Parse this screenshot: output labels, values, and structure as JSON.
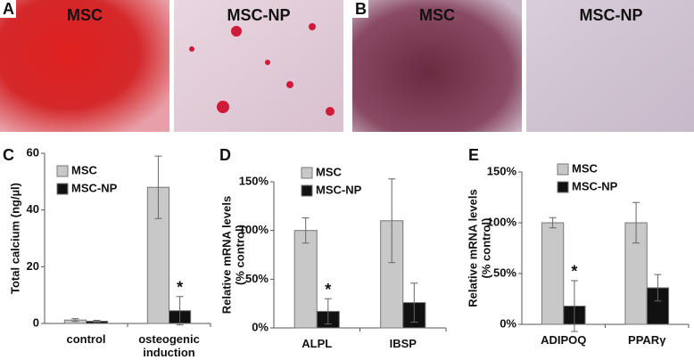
{
  "panels": [
    {
      "label": "A",
      "images": [
        "MSC",
        "MSC-NP"
      ]
    },
    {
      "label": "B",
      "images": [
        "MSC",
        "MSC-NP"
      ]
    }
  ],
  "chart_data": [
    {
      "type": "bar",
      "panel": "C",
      "ylabel": [
        "Total calcium (ng/µl)"
      ],
      "categories": [
        "control",
        "osteogenic induction"
      ],
      "series": [
        {
          "name": "MSC",
          "color": "#c8c8c8",
          "values": [
            1.2,
            48
          ],
          "errors": [
            0.5,
            11
          ]
        },
        {
          "name": "MSC-NP",
          "color": "#111111",
          "values": [
            0.8,
            4.5
          ],
          "errors": [
            0.3,
            5
          ]
        }
      ],
      "ylim": [
        0,
        60
      ],
      "yticks": [
        0,
        20,
        40,
        60
      ],
      "annotations": [
        {
          "text": "*",
          "category": "osteogenic induction",
          "series": "MSC-NP"
        }
      ]
    },
    {
      "type": "bar",
      "panel": "D",
      "ylabel": [
        "Relative mRNA levels",
        "(% control)"
      ],
      "categories": [
        "ALPL",
        "IBSP"
      ],
      "series": [
        {
          "name": "MSC",
          "color": "#c8c8c8",
          "values": [
            100,
            110
          ],
          "errors": [
            13,
            43
          ]
        },
        {
          "name": "MSC-NP",
          "color": "#111111",
          "values": [
            17,
            26
          ],
          "errors": [
            13,
            20
          ]
        }
      ],
      "ylim": [
        0,
        150
      ],
      "yticks": [
        {
          "value": 0,
          "label": "0%"
        },
        {
          "value": 50,
          "label": "50%"
        },
        {
          "value": 100,
          "label": "100%"
        },
        {
          "value": 150,
          "label": "150%"
        }
      ],
      "annotations": [
        {
          "text": "*",
          "category": "ALPL",
          "series": "MSC-NP"
        }
      ]
    },
    {
      "type": "bar",
      "panel": "E",
      "ylabel": [
        "Relative mRNA levels",
        "(% control)"
      ],
      "categories": [
        "ADIPOQ",
        "PPARγ"
      ],
      "series": [
        {
          "name": "MSC",
          "color": "#c8c8c8",
          "values": [
            100,
            100
          ],
          "errors": [
            5,
            20
          ]
        },
        {
          "name": "MSC-NP",
          "color": "#111111",
          "values": [
            18,
            36
          ],
          "errors": [
            25,
            13
          ]
        }
      ],
      "ylim": [
        0,
        150
      ],
      "yticks": [
        {
          "value": 0,
          "label": "0%"
        },
        {
          "value": 50,
          "label": "50%"
        },
        {
          "value": 100,
          "label": "100%"
        },
        {
          "value": 150,
          "label": "150%"
        }
      ],
      "annotations": [
        {
          "text": "*",
          "category": "ADIPOQ",
          "series": "MSC-NP"
        }
      ]
    }
  ]
}
